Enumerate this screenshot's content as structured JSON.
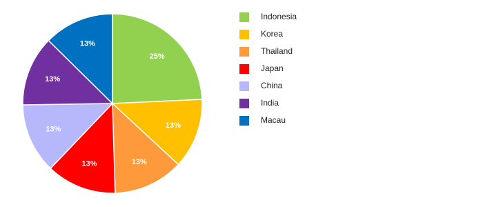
{
  "chart_data": {
    "type": "pie",
    "categories": [
      "Indonesia",
      "Korea",
      "Thailand",
      "Japan",
      "China",
      "India",
      "Macau"
    ],
    "values": [
      25,
      13,
      13,
      13,
      13,
      13,
      13
    ],
    "value_labels": [
      "25%",
      "13%",
      "13%",
      "13%",
      "13%",
      "13%",
      "13%"
    ],
    "colors": [
      "#92d050",
      "#ffc000",
      "#ff9a3c",
      "#ff0000",
      "#b7b7fb",
      "#7030a0",
      "#0070c0"
    ],
    "legend": "right"
  }
}
